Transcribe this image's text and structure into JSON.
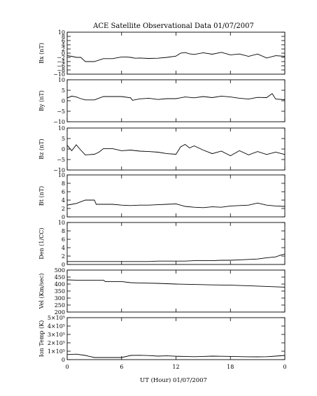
{
  "title": "ACE Satellite Observational Data   01/07/2007",
  "xlabel": "UT (Hour)   01/07/2007",
  "x_tick_labels": [
    "0",
    "6",
    "12",
    "18",
    "0"
  ],
  "chart_data": [
    {
      "type": "line",
      "ylabel": "Bx (nT)",
      "ylim": [
        -10,
        10
      ],
      "y_ticks": [
        -10,
        -8,
        -6,
        -4,
        -2,
        0,
        2,
        4,
        6,
        8,
        10
      ],
      "y_tick_labels": [
        "−10",
        "−8",
        "−6",
        "−4",
        "−2",
        "0",
        "2",
        "4",
        "6",
        "8",
        "10"
      ],
      "x": [
        0,
        0.5,
        1,
        1.5,
        1.8,
        2,
        3,
        4,
        5,
        6,
        6.5,
        7,
        7.5,
        8,
        9,
        10,
        11,
        12,
        12.5,
        13,
        13.5,
        14,
        15,
        16,
        17,
        18,
        19,
        20,
        21,
        22,
        23,
        24
      ],
      "y": [
        -1.2,
        -1.5,
        -2,
        -2,
        -3.2,
        -4,
        -4,
        -2.6,
        -2.6,
        -1.8,
        -1.8,
        -2,
        -2.4,
        -2.3,
        -2.5,
        -2.4,
        -2,
        -1.4,
        0,
        0.3,
        -0.3,
        -0.6,
        0.2,
        -0.5,
        0.4,
        -0.8,
        -0.4,
        -1.5,
        -0.4,
        -2.3,
        -1.2,
        -1.5
      ]
    },
    {
      "type": "line",
      "ylabel": "By (nT)",
      "ylim": [
        -10,
        10
      ],
      "y_ticks": [
        -10,
        -5,
        0,
        5,
        10
      ],
      "y_tick_labels": [
        "−10",
        "−5",
        "0",
        "5",
        "10"
      ],
      "x": [
        0,
        0.5,
        1,
        1.5,
        2,
        3,
        4,
        5,
        6,
        7,
        7.2,
        8,
        9,
        10,
        11,
        12,
        13,
        14,
        15,
        16,
        17,
        18,
        19,
        20,
        21,
        22,
        22.6,
        23,
        24
      ],
      "y": [
        1.3,
        2.2,
        1.8,
        1.0,
        0.4,
        0.4,
        2.0,
        2.0,
        2.0,
        1.4,
        0.2,
        0.9,
        1.2,
        0.6,
        1.0,
        1.0,
        1.8,
        1.4,
        2.0,
        1.5,
        2.2,
        1.8,
        1.2,
        0.8,
        1.6,
        1.5,
        3.4,
        0.8,
        0.5
      ]
    },
    {
      "type": "line",
      "ylabel": "Bz (nT)",
      "ylim": [
        -10,
        10
      ],
      "y_ticks": [
        -10,
        -5,
        0,
        5,
        10
      ],
      "y_tick_labels": [
        "−10",
        "−5",
        "0",
        "5",
        "10"
      ],
      "x": [
        0,
        0.5,
        1,
        1.5,
        2,
        3,
        3.5,
        4,
        5,
        6,
        7,
        8,
        9,
        10,
        11,
        12,
        12.5,
        13,
        13.5,
        14,
        15,
        16,
        17,
        18,
        19,
        20,
        21,
        22,
        23,
        24
      ],
      "y": [
        1.8,
        -0.8,
        2.0,
        -0.5,
        -2.8,
        -2.5,
        -1.5,
        0.2,
        0.2,
        -0.8,
        -0.5,
        -1.0,
        -1.2,
        -1.5,
        -2.2,
        -2.5,
        1.0,
        2.2,
        0.5,
        1.5,
        -0.5,
        -2.2,
        -1.0,
        -3.2,
        -0.8,
        -2.8,
        -1.2,
        -2.6,
        -1.5,
        -2.6
      ]
    },
    {
      "type": "line",
      "ylabel": "Bt (nT)",
      "ylim": [
        0,
        10
      ],
      "y_ticks": [
        0,
        2,
        4,
        6,
        8,
        10
      ],
      "y_tick_labels": [
        "0",
        "2",
        "4",
        "6",
        "8",
        "10"
      ],
      "x": [
        0,
        0.5,
        1,
        2,
        3,
        3.2,
        4,
        5,
        6,
        7,
        8,
        9,
        10,
        11,
        12,
        13,
        14,
        15,
        16,
        17,
        18,
        19,
        20,
        21,
        22,
        23,
        24
      ],
      "y": [
        2.8,
        3.0,
        3.2,
        4.0,
        4.0,
        3.0,
        3.0,
        3.0,
        2.8,
        2.7,
        2.8,
        2.8,
        2.9,
        3.0,
        3.1,
        2.5,
        2.3,
        2.2,
        2.4,
        2.3,
        2.6,
        2.7,
        2.8,
        3.3,
        2.8,
        2.6,
        2.5
      ]
    },
    {
      "type": "line",
      "ylabel": "Den (1/CC)",
      "ylim": [
        0,
        10
      ],
      "y_ticks": [
        0,
        2,
        4,
        6,
        8,
        10
      ],
      "y_tick_labels": [
        "0",
        "2",
        "4",
        "6",
        "8",
        "10"
      ],
      "x": [
        0,
        6,
        7,
        8,
        9,
        10,
        11,
        12,
        13,
        14,
        15,
        16,
        17,
        18,
        19,
        20,
        21,
        22,
        23,
        23.5,
        24
      ],
      "y": [
        0.7,
        0.7,
        0.7,
        0.7,
        0.7,
        0.8,
        0.8,
        0.8,
        0.8,
        0.9,
        0.9,
        0.9,
        1.0,
        1.0,
        1.1,
        1.2,
        1.3,
        1.6,
        1.8,
        2.2,
        2.5
      ]
    },
    {
      "type": "line",
      "ylabel": "Vel (Km/sec)",
      "ylim": [
        200,
        500
      ],
      "y_ticks": [
        200,
        250,
        300,
        350,
        400,
        450,
        500
      ],
      "y_tick_labels": [
        "200",
        "250",
        "300",
        "350",
        "400",
        "450",
        "500"
      ],
      "x": [
        0,
        1,
        2,
        4,
        4.2,
        6,
        7,
        8,
        10,
        12,
        14,
        16,
        18,
        20,
        22,
        24
      ],
      "y": [
        430,
        428,
        428,
        428,
        418,
        418,
        410,
        408,
        405,
        400,
        397,
        394,
        392,
        388,
        383,
        378
      ]
    },
    {
      "type": "line",
      "ylabel": "Ion Temp (K)",
      "ylim": [
        0,
        500000
      ],
      "y_ticks": [
        0,
        100000,
        200000,
        300000,
        400000,
        500000
      ],
      "y_tick_labels": [
        "0",
        "1×10⁵",
        "2×10⁵",
        "3×10⁵",
        "4×10⁵",
        "5×10⁵"
      ],
      "x": [
        0,
        1,
        2,
        3,
        6,
        7,
        8,
        9,
        10,
        11,
        12,
        13,
        14,
        15,
        16,
        17,
        18,
        19,
        20,
        21,
        22,
        23,
        24
      ],
      "y": [
        60000,
        65000,
        50000,
        25000,
        25000,
        50000,
        52000,
        48000,
        42000,
        45000,
        40000,
        38000,
        35000,
        38000,
        42000,
        40000,
        38000,
        36000,
        34000,
        33000,
        35000,
        42000,
        50000
      ]
    }
  ]
}
